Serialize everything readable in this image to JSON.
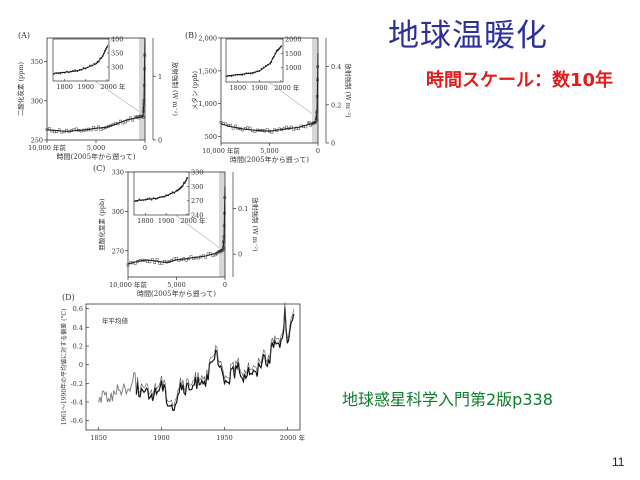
{
  "slide": {
    "title": "地球温暖化",
    "subtitle": "時間スケール：数10年",
    "source": "地球惑星科学入門第2版p338",
    "page_number": "11"
  },
  "colors": {
    "title": "#2f2f9a",
    "subtitle": "#e01c1c",
    "source": "#0b7d2b"
  },
  "chart_data": [
    {
      "panel": "(A)",
      "type": "scatter",
      "ylabel": "二酸化炭素 (ppm)",
      "y2label": "放射強制 (W m⁻²)",
      "xlabel": "時間(2005年から遡って)",
      "x_ticks": [
        "10,000 年前",
        "5,000",
        "0"
      ],
      "y_ticks": [
        "250",
        "300",
        "350"
      ],
      "y2_ticks": [
        "0",
        "1"
      ],
      "xlim": [
        10000,
        0
      ],
      "ylim": [
        250,
        380
      ],
      "x": [
        10000,
        9000,
        8000,
        7000,
        6000,
        5000,
        4000,
        3000,
        2000,
        1000,
        500,
        200,
        100,
        0
      ],
      "values": [
        263,
        262,
        261,
        262,
        263,
        265,
        266,
        270,
        275,
        278,
        279,
        280,
        300,
        379
      ],
      "inset": {
        "x_ticks": [
          "1800",
          "1900",
          "2000 年"
        ],
        "y_ticks": [
          "300",
          "350",
          "400"
        ],
        "x": [
          1750,
          1800,
          1850,
          1900,
          1950,
          1980,
          2005
        ],
        "values": [
          278,
          281,
          285,
          296,
          311,
          338,
          379
        ]
      }
    },
    {
      "panel": "(B)",
      "type": "scatter",
      "ylabel": "メタン (ppb)",
      "y2label": "放射強制 (W m⁻²)",
      "xlabel": "時間(2005年から遡って)",
      "x_ticks": [
        "10,000 年前",
        "5,000",
        "0"
      ],
      "y_ticks": [
        "500",
        "1,000",
        "1,500",
        "2,000"
      ],
      "y2_ticks": [
        "0",
        "0.2",
        "0.4"
      ],
      "xlim": [
        10000,
        0
      ],
      "ylim": [
        400,
        2000
      ],
      "x": [
        10000,
        9000,
        8000,
        7000,
        6000,
        5000,
        4000,
        3000,
        2000,
        1000,
        500,
        200,
        100,
        0
      ],
      "values": [
        690,
        650,
        620,
        600,
        590,
        580,
        600,
        620,
        640,
        680,
        700,
        720,
        900,
        1774
      ],
      "inset": {
        "x_ticks": [
          "1800",
          "1900",
          "2000 年"
        ],
        "y_ticks": [
          "1000",
          "1500",
          "2000"
        ],
        "x": [
          1750,
          1800,
          1850,
          1900,
          1950,
          1980,
          2005
        ],
        "values": [
          720,
          760,
          800,
          880,
          1150,
          1550,
          1774
        ]
      }
    },
    {
      "panel": "(C)",
      "type": "scatter",
      "ylabel": "亜酸化窒素 (ppb)",
      "y2label": "放射強制 (W m⁻²)",
      "xlabel": "時間(2005年から遡って)",
      "x_ticks": [
        "10,000 年前",
        "5,000",
        "0"
      ],
      "y_ticks": [
        "270",
        "300",
        "330"
      ],
      "y2_ticks": [
        "0",
        "0.1"
      ],
      "xlim": [
        10000,
        0
      ],
      "ylim": [
        250,
        330
      ],
      "x": [
        10000,
        9000,
        8000,
        7000,
        6000,
        5000,
        4000,
        3000,
        2000,
        1000,
        500,
        200,
        100,
        0
      ],
      "values": [
        260,
        262,
        263,
        262,
        261,
        263,
        264,
        265,
        266,
        268,
        270,
        271,
        280,
        319
      ],
      "inset": {
        "x_ticks": [
          "1800",
          "1900",
          "2000 年"
        ],
        "y_ticks": [
          "240",
          "270",
          "300",
          "330"
        ],
        "x": [
          1750,
          1800,
          1850,
          1900,
          1950,
          1980,
          2005
        ],
        "values": [
          270,
          272,
          275,
          280,
          290,
          302,
          319
        ]
      }
    },
    {
      "panel": "(D)",
      "type": "line",
      "annotation": "年平均値",
      "ylabel": "1961〜1990年の平均値に対する偏差 (°C)",
      "x_ticks": [
        "1850",
        "1900",
        "1950",
        "2000 年"
      ],
      "y_ticks": [
        "0.6",
        "0.4",
        "0.2",
        "0",
        "-0.2",
        "-0.4",
        "-0.6"
      ],
      "xlim": [
        1840,
        2010
      ],
      "ylim": [
        -0.7,
        0.65
      ],
      "x": [
        1850,
        1855,
        1860,
        1865,
        1870,
        1875,
        1878,
        1880,
        1885,
        1890,
        1895,
        1900,
        1905,
        1910,
        1915,
        1920,
        1925,
        1930,
        1935,
        1940,
        1944,
        1945,
        1950,
        1955,
        1960,
        1965,
        1970,
        1975,
        1980,
        1985,
        1990,
        1995,
        1998,
        2000,
        2005
      ],
      "values": [
        -0.38,
        -0.32,
        -0.35,
        -0.28,
        -0.22,
        -0.3,
        -0.02,
        -0.25,
        -0.3,
        -0.34,
        -0.3,
        -0.2,
        -0.38,
        -0.46,
        -0.24,
        -0.28,
        -0.24,
        -0.15,
        -0.16,
        -0.02,
        0.14,
        -0.02,
        -0.18,
        -0.12,
        -0.04,
        -0.11,
        -0.05,
        -0.12,
        0.08,
        0.05,
        0.25,
        0.21,
        0.55,
        0.3,
        0.48
      ]
    }
  ]
}
